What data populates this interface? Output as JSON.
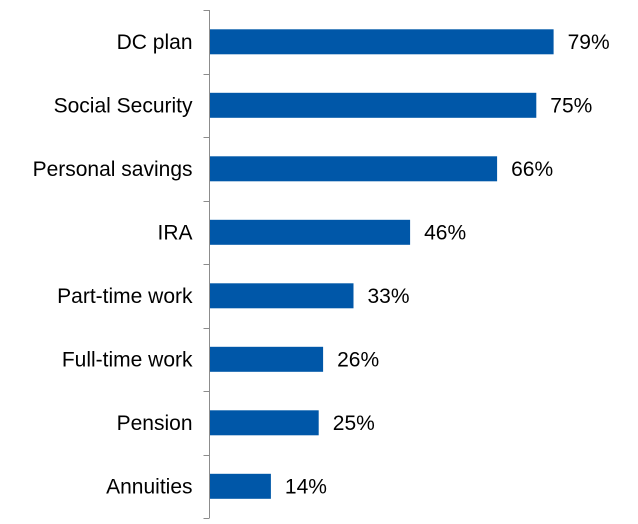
{
  "chart_data": {
    "type": "bar",
    "orientation": "horizontal",
    "categories": [
      "DC plan",
      "Social Security",
      "Personal savings",
      "IRA",
      "Part-time work",
      "Full-time work",
      "Pension",
      "Annuities"
    ],
    "values": [
      79,
      75,
      66,
      46,
      33,
      26,
      25,
      14
    ],
    "value_labels": [
      "79%",
      "75%",
      "66%",
      "46%",
      "33%",
      "26%",
      "25%",
      "14%"
    ],
    "xlim": [
      0,
      100
    ],
    "grid": false,
    "legend": "none",
    "bar_color": "#0057A8",
    "axis_color": "#8C8C8C"
  }
}
